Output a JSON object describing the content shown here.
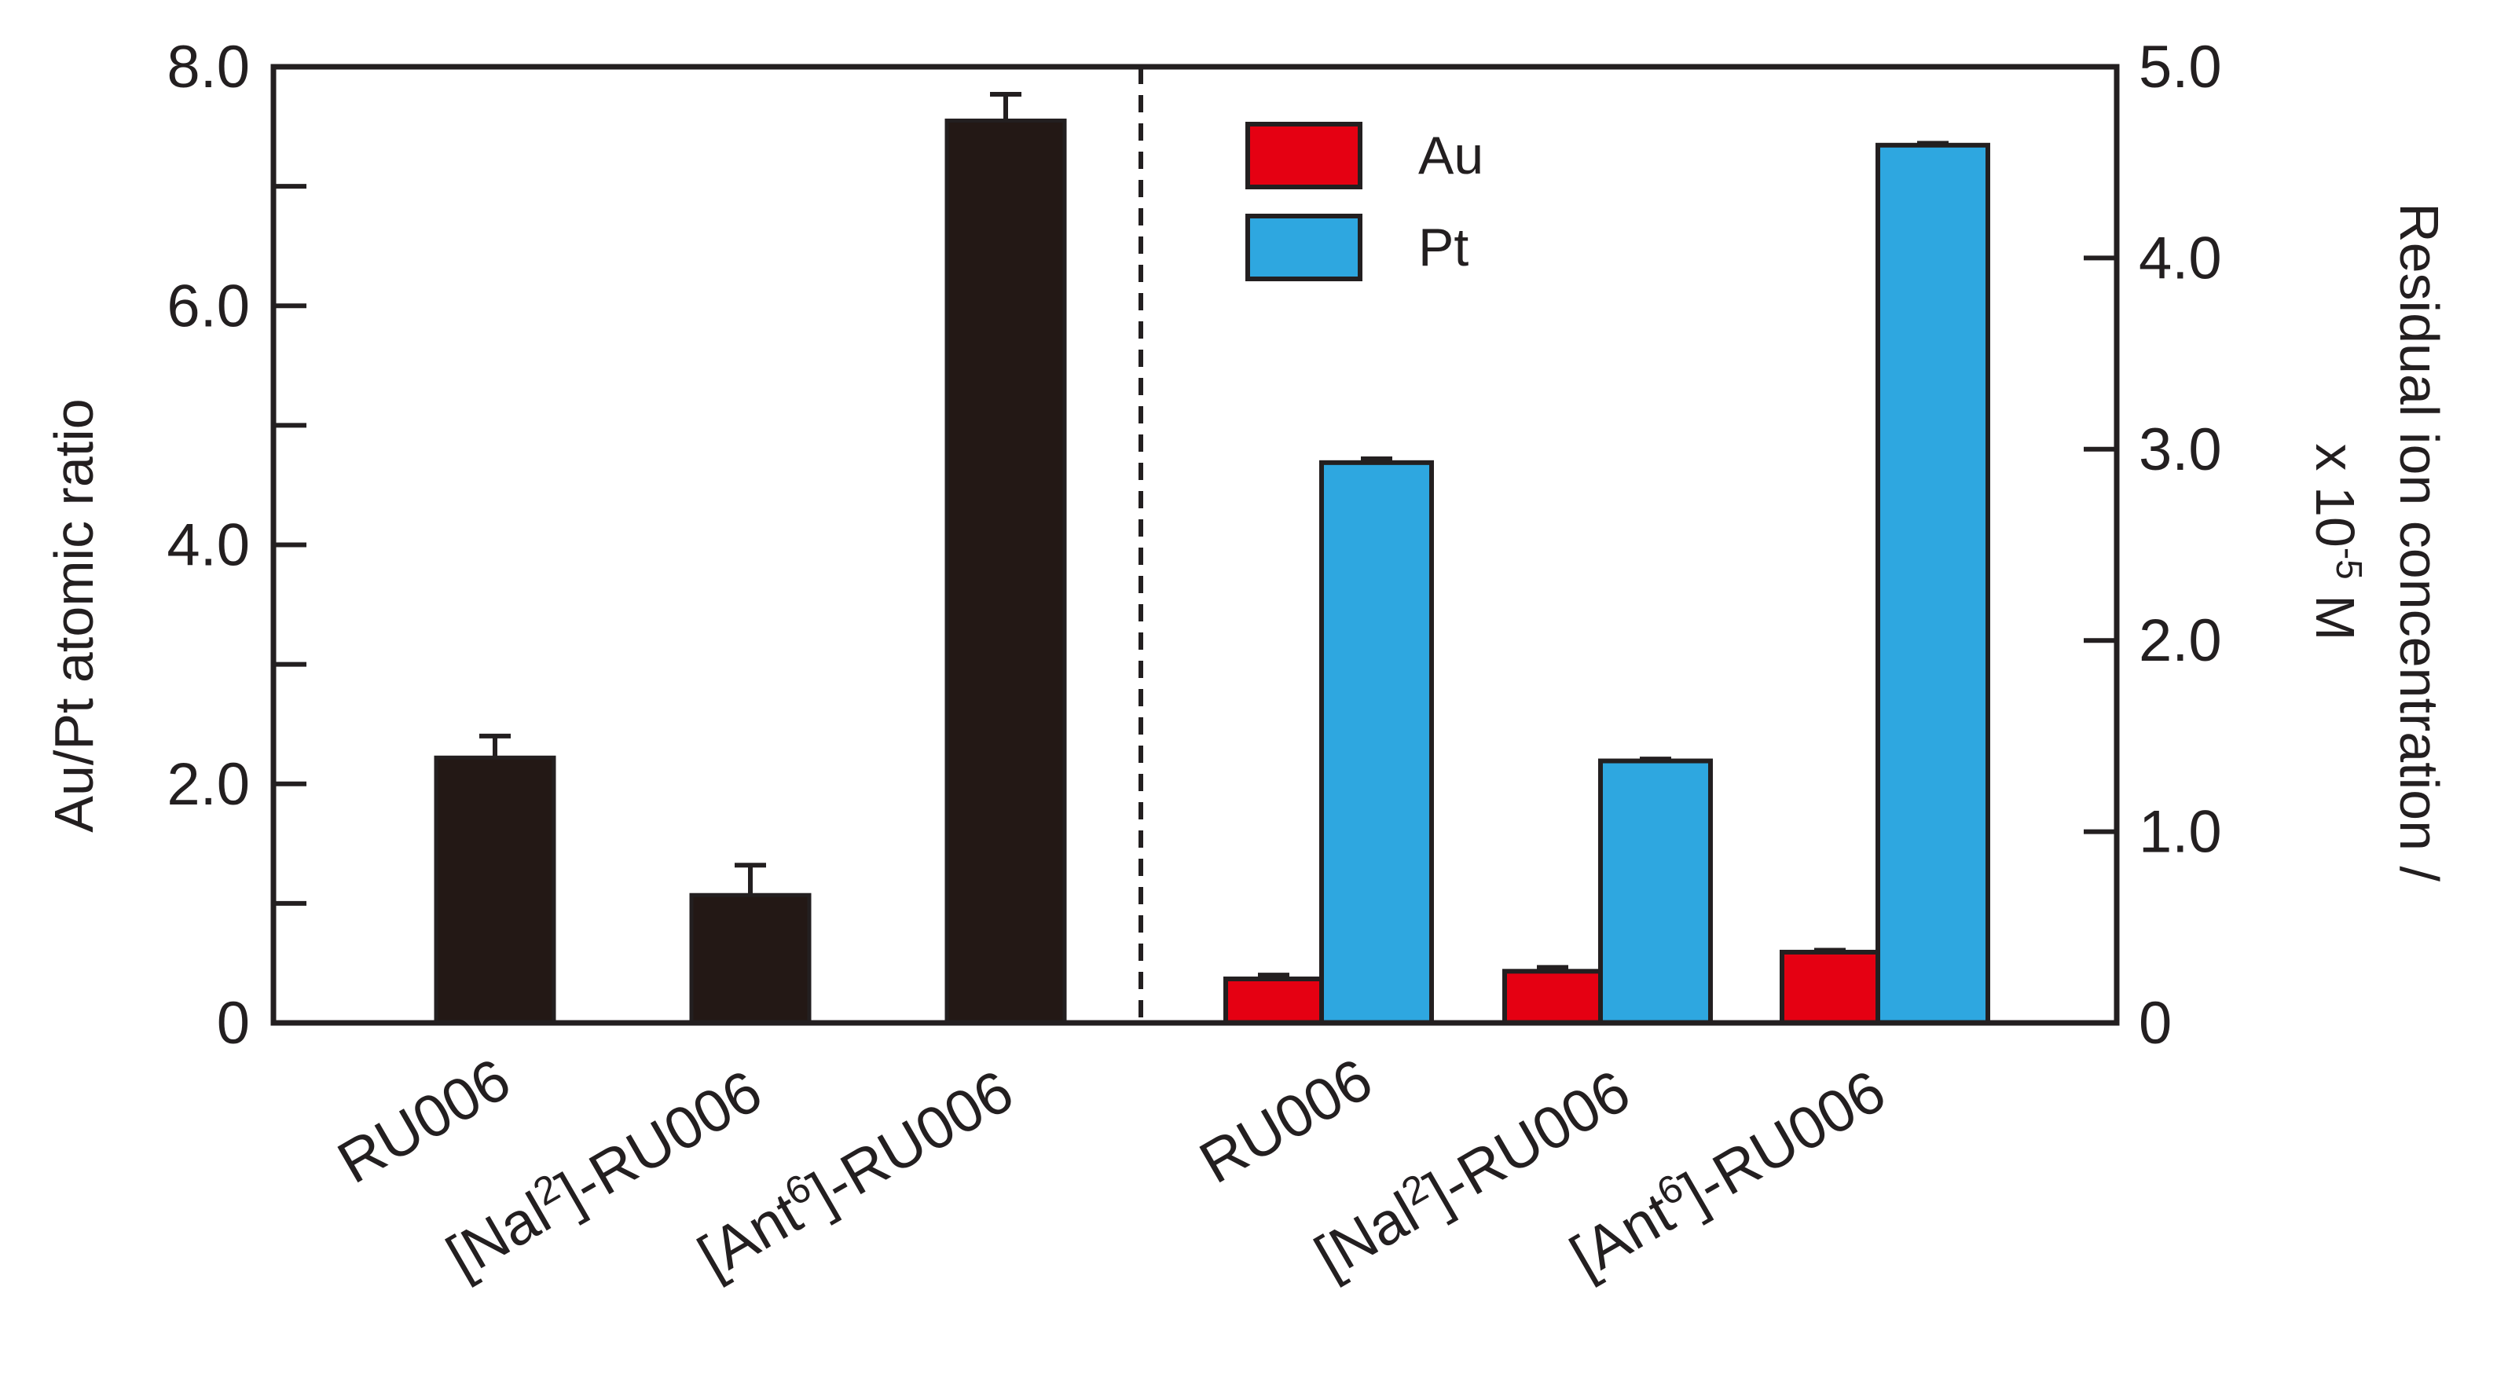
{
  "chart_data": {
    "type": "bar",
    "colors": {
      "ratio": "#231815",
      "au": "#e50012",
      "pt": "#2ea7e0",
      "axis": "#231f20"
    },
    "left_panel": {
      "ylabel": "Au/Pt atomic ratio",
      "ylim": [
        0,
        8
      ],
      "yticks": [
        "0",
        "2.0",
        "4.0",
        "6.0",
        "8.0"
      ],
      "categories": [
        {
          "pre": "RU006",
          "sup": "",
          "post": ""
        },
        {
          "pre": "[Nal",
          "sup": "2",
          "post": "]-RU006"
        },
        {
          "pre": "[Ant",
          "sup": "6",
          "post": "]-RU006"
        }
      ],
      "values": [
        2.22,
        1.07,
        7.55
      ],
      "errors": [
        0.18,
        0.25,
        0.22
      ]
    },
    "right_panel": {
      "ylabel_line1": "Residual ion concentration /",
      "ylabel_line2_pre": "x 10",
      "ylabel_line2_sup": "-5",
      "ylabel_line2_post": " M",
      "ylim": [
        0,
        5
      ],
      "yticks": [
        "0",
        "1.0",
        "2.0",
        "3.0",
        "4.0",
        "5.0"
      ],
      "categories": [
        {
          "pre": "RU006",
          "sup": "",
          "post": ""
        },
        {
          "pre": "[Nal",
          "sup": "2",
          "post": "]-RU006"
        },
        {
          "pre": "[Ant",
          "sup": "6",
          "post": "]-RU006"
        }
      ],
      "series": [
        {
          "name": "Au",
          "values": [
            0.23,
            0.27,
            0.37
          ],
          "errors": [
            0.02,
            0.02,
            0.01
          ]
        },
        {
          "name": "Pt",
          "values": [
            2.93,
            1.37,
            4.59
          ],
          "errors": [
            0.02,
            0.01,
            0.01
          ]
        }
      ]
    },
    "legend": {
      "position": "top-center-right"
    }
  }
}
